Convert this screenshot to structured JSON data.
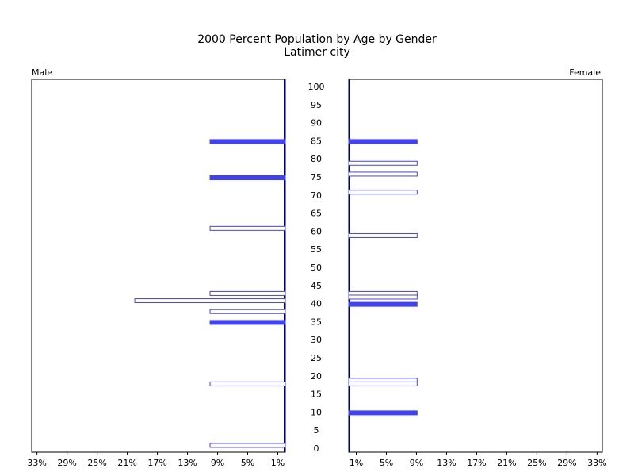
{
  "chart_data": {
    "type": "pyramid",
    "title": "2000 Percent Population by Age by Gender",
    "subtitle": "Latimer city",
    "ylim": [
      0,
      100
    ],
    "yticks": [
      0,
      5,
      10,
      15,
      20,
      25,
      30,
      35,
      40,
      45,
      50,
      55,
      60,
      65,
      70,
      75,
      80,
      85,
      90,
      95,
      100
    ],
    "xlim": [
      0,
      33.7
    ],
    "xticks": [
      {
        "value": 1,
        "label": "1%"
      },
      {
        "value": 5,
        "label": "5%"
      },
      {
        "value": 9,
        "label": "9%"
      },
      {
        "value": 13,
        "label": "13%"
      },
      {
        "value": 17,
        "label": "17%"
      },
      {
        "value": 21,
        "label": "21%"
      },
      {
        "value": 25,
        "label": "25%"
      },
      {
        "value": 29,
        "label": "29%"
      },
      {
        "value": 33,
        "label": "33%"
      }
    ],
    "series": [
      {
        "name": "Male",
        "color": "#4040ff",
        "ages": [
          85,
          75,
          61,
          43,
          41,
          38,
          35,
          18,
          1
        ],
        "values": [
          10,
          10,
          10,
          10,
          20,
          10,
          10,
          10,
          10
        ],
        "filled": [
          true,
          true,
          false,
          false,
          false,
          false,
          true,
          false,
          false
        ]
      },
      {
        "name": "Female",
        "color": "#4040ff",
        "ages": [
          85,
          79,
          76,
          71,
          59,
          43,
          42,
          40,
          19,
          18,
          10
        ],
        "values": [
          9.09,
          9.09,
          9.09,
          9.09,
          9.09,
          9.09,
          9.09,
          9.09,
          9.09,
          9.09,
          9.09
        ],
        "filled": [
          true,
          false,
          false,
          false,
          false,
          false,
          false,
          true,
          false,
          false,
          true
        ]
      }
    ]
  }
}
